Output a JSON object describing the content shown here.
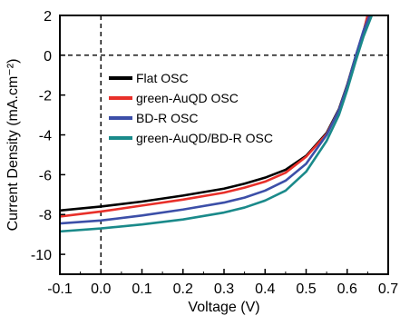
{
  "chart_data": {
    "type": "line",
    "title": "",
    "xlabel": "Voltage (V)",
    "ylabel": "Current Density (mA.cm⁻²)",
    "xlim": [
      -0.1,
      0.7
    ],
    "ylim": [
      -11,
      2
    ],
    "xticks": [
      -0.1,
      0.0,
      0.1,
      0.2,
      0.3,
      0.4,
      0.5,
      0.6,
      0.7
    ],
    "xtick_labels": [
      "-0.1",
      "0.0",
      "0.1",
      "0.2",
      "0.3",
      "0.4",
      "0.5",
      "0.6",
      "0.7"
    ],
    "yticks": [
      2,
      0,
      -2,
      -4,
      -6,
      -8,
      -10
    ],
    "ytick_labels": [
      "2",
      "0",
      "-2",
      "-4",
      "-6",
      "-8",
      "-10"
    ],
    "grid": false,
    "reference_lines": [
      {
        "orientation": "horizontal",
        "value": 0,
        "style": "dashed"
      },
      {
        "orientation": "vertical",
        "value": 0.0,
        "style": "dashed"
      }
    ],
    "legend": {
      "position": "upper-left"
    },
    "series": [
      {
        "name": "Flat OSC",
        "color": "#000000",
        "x": [
          -0.1,
          0.0,
          0.1,
          0.2,
          0.3,
          0.35,
          0.4,
          0.45,
          0.5,
          0.55,
          0.58,
          0.6,
          0.62,
          0.64,
          0.65
        ],
        "y": [
          -7.8,
          -7.6,
          -7.35,
          -7.05,
          -6.7,
          -6.45,
          -6.15,
          -5.75,
          -5.05,
          -3.9,
          -2.7,
          -1.5,
          -0.1,
          1.2,
          2.0
        ]
      },
      {
        "name": "green-AuQD OSC",
        "color": "#e8302a",
        "x": [
          -0.1,
          0.0,
          0.1,
          0.2,
          0.3,
          0.35,
          0.4,
          0.45,
          0.5,
          0.55,
          0.58,
          0.6,
          0.62,
          0.64,
          0.65
        ],
        "y": [
          -8.1,
          -7.85,
          -7.55,
          -7.25,
          -6.9,
          -6.65,
          -6.35,
          -5.9,
          -5.1,
          -3.95,
          -2.75,
          -1.55,
          -0.15,
          1.2,
          2.0
        ]
      },
      {
        "name": "BD-R OSC",
        "color": "#3c4fa8",
        "x": [
          -0.1,
          0.0,
          0.1,
          0.2,
          0.3,
          0.35,
          0.4,
          0.45,
          0.5,
          0.55,
          0.58,
          0.6,
          0.62,
          0.64,
          0.655
        ],
        "y": [
          -8.45,
          -8.3,
          -8.05,
          -7.75,
          -7.4,
          -7.15,
          -6.8,
          -6.3,
          -5.45,
          -4.0,
          -2.75,
          -1.55,
          -0.1,
          1.25,
          2.0
        ]
      },
      {
        "name": "green-AuQD/BD-R OSC",
        "color": "#1a8a8a",
        "x": [
          -0.1,
          0.0,
          0.1,
          0.2,
          0.3,
          0.35,
          0.4,
          0.45,
          0.5,
          0.55,
          0.58,
          0.6,
          0.62,
          0.64,
          0.66
        ],
        "y": [
          -8.85,
          -8.7,
          -8.5,
          -8.25,
          -7.9,
          -7.65,
          -7.3,
          -6.8,
          -5.85,
          -4.3,
          -3.0,
          -1.75,
          -0.35,
          0.95,
          2.0
        ]
      }
    ]
  }
}
